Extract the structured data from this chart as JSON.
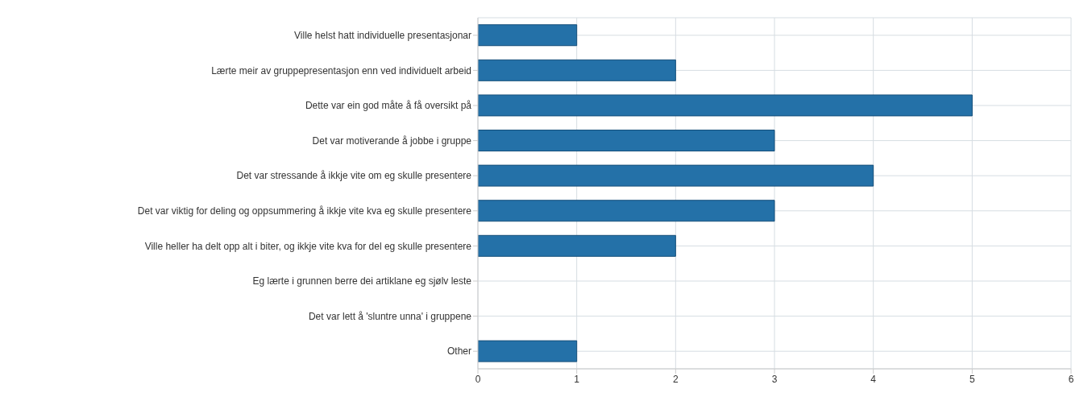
{
  "chart_data": {
    "type": "bar",
    "orientation": "horizontal",
    "categories": [
      "Ville helst hatt individuelle presentasjonar",
      "Lærte meir av gruppepresentasjon enn ved individuelt arbeid",
      "Dette var ein god måte å få oversikt på",
      "Det var motiverande å jobbe i gruppe",
      "Det var stressande å ikkje vite om eg skulle presentere",
      "Det var viktig for deling og oppsummering å ikkje vite kva eg skulle presentere",
      "Ville heller ha delt opp alt i biter, og ikkje vite kva for del eg skulle presentere",
      "Eg lærte i grunnen berre dei artiklane eg sjølv leste",
      "Det var lett å 'sluntre unna' i gruppene",
      "Other"
    ],
    "values": [
      1,
      2,
      5,
      3,
      4,
      3,
      2,
      0,
      0,
      1
    ],
    "color": "#2471a8",
    "xlim": [
      0,
      6
    ],
    "xticks": [
      0,
      1,
      2,
      3,
      4,
      5,
      6
    ],
    "grid": true
  }
}
